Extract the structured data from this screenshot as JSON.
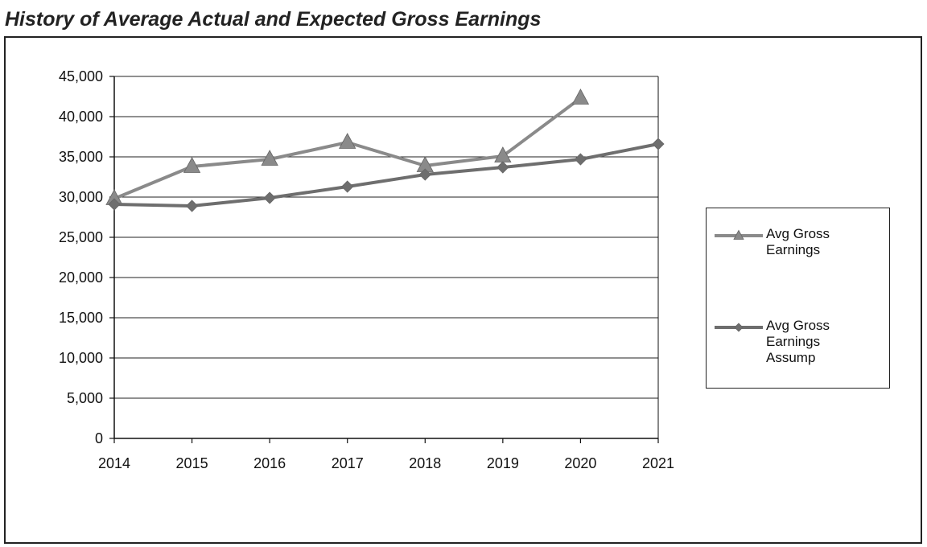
{
  "chart_data": {
    "type": "line",
    "title": "History of Average Actual and Expected Gross Earnings",
    "categories": [
      "2014",
      "2015",
      "2016",
      "2017",
      "2018",
      "2019",
      "2020",
      "2021"
    ],
    "series": [
      {
        "name": "Avg Gross Earnings",
        "color": "#8a8a8a",
        "marker": "triangle",
        "values": [
          29800,
          33800,
          34700,
          36800,
          33900,
          35100,
          42300,
          null
        ]
      },
      {
        "name": "Avg Gross Earnings Assump",
        "color": "#6e6e6e",
        "marker": "diamond",
        "values": [
          29100,
          28900,
          29900,
          31300,
          32800,
          33700,
          34700,
          36600
        ]
      }
    ],
    "ylim": [
      0,
      45000
    ],
    "yticks": [
      {
        "value": 0,
        "label": "0"
      },
      {
        "value": 5000,
        "label": "5,000"
      },
      {
        "value": 10000,
        "label": "10,000"
      },
      {
        "value": 15000,
        "label": "15,000"
      },
      {
        "value": 20000,
        "label": "20,000"
      },
      {
        "value": 25000,
        "label": "25,000"
      },
      {
        "value": 30000,
        "label": "30,000"
      },
      {
        "value": 35000,
        "label": "35,000"
      },
      {
        "value": 40000,
        "label": "40,000"
      },
      {
        "value": 45000,
        "label": "45,000"
      }
    ],
    "grid": true,
    "legend": "right"
  }
}
